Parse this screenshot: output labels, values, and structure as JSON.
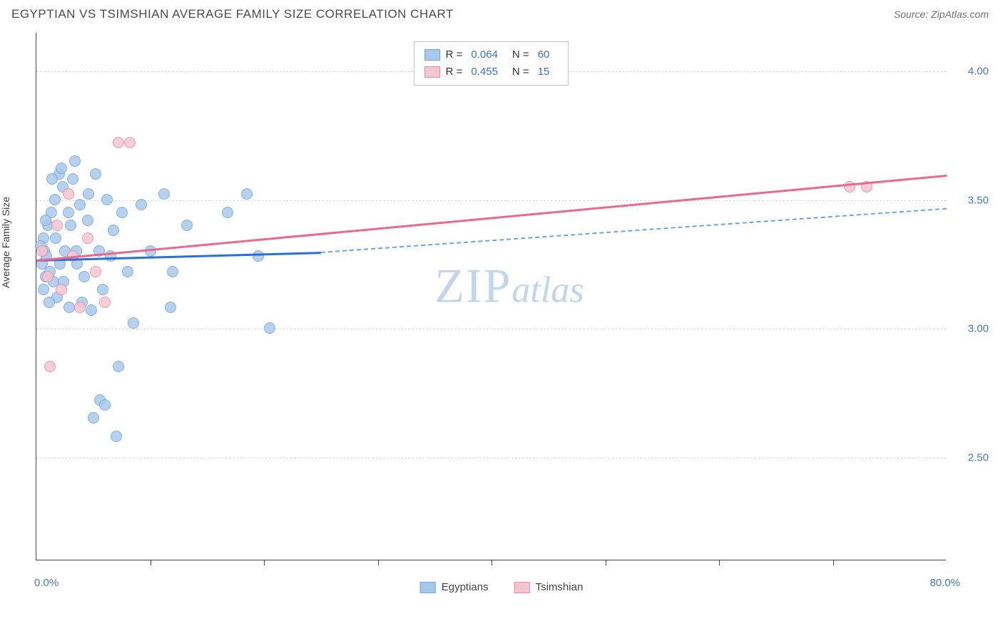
{
  "header": {
    "title": "EGYPTIAN VS TSIMSHIAN AVERAGE FAMILY SIZE CORRELATION CHART",
    "source_label": "Source: ",
    "source_value": "ZipAtlas.com"
  },
  "chart": {
    "type": "scatter",
    "y_axis_label": "Average Family Size",
    "x_min_label": "0.0%",
    "x_max_label": "80.0%",
    "xlim": [
      0,
      80
    ],
    "ylim": [
      2.1,
      4.15
    ],
    "y_ticks": [
      2.5,
      3.0,
      3.5,
      4.0
    ],
    "x_tick_positions": [
      10,
      20,
      30,
      40,
      50,
      60,
      70
    ],
    "grid_color": "#dcdcdc",
    "background_color": "#ffffff",
    "axis_color": "#444444",
    "tick_label_color": "#4178cc",
    "point_radius": 8,
    "series": [
      {
        "name": "Egyptians",
        "fill_color": "#a9c9ec",
        "stroke_color": "#6ea4e0",
        "trend_color": "#2a6fd6",
        "trend_dash_color": "#6ea4e0",
        "legend_r": "0.064",
        "legend_n": "60",
        "trend": {
          "x1": 0,
          "y1": 3.27,
          "x2_solid": 25,
          "y2_solid": 3.3,
          "x2_dash": 80,
          "y2_dash": 3.47
        },
        "points": [
          [
            0.5,
            3.25
          ],
          [
            0.7,
            3.3
          ],
          [
            0.8,
            3.2
          ],
          [
            0.6,
            3.35
          ],
          [
            0.9,
            3.28
          ],
          [
            1.0,
            3.4
          ],
          [
            1.2,
            3.22
          ],
          [
            1.3,
            3.45
          ],
          [
            1.5,
            3.18
          ],
          [
            1.6,
            3.5
          ],
          [
            1.8,
            3.12
          ],
          [
            2.0,
            3.6
          ],
          [
            2.1,
            3.25
          ],
          [
            2.3,
            3.55
          ],
          [
            2.5,
            3.3
          ],
          [
            2.8,
            3.45
          ],
          [
            3.0,
            3.4
          ],
          [
            3.2,
            3.58
          ],
          [
            3.6,
            3.25
          ],
          [
            3.8,
            3.48
          ],
          [
            4.2,
            3.2
          ],
          [
            4.5,
            3.42
          ],
          [
            4.8,
            3.07
          ],
          [
            5.2,
            3.6
          ],
          [
            5.5,
            3.3
          ],
          [
            5.8,
            3.15
          ],
          [
            6.2,
            3.5
          ],
          [
            6.8,
            3.38
          ],
          [
            7.2,
            2.85
          ],
          [
            7.5,
            3.45
          ],
          [
            8.0,
            3.22
          ],
          [
            8.5,
            3.02
          ],
          [
            9.2,
            3.48
          ],
          [
            10.0,
            3.3
          ],
          [
            11.2,
            3.52
          ],
          [
            12.0,
            3.22
          ],
          [
            13.2,
            3.4
          ],
          [
            16.8,
            3.45
          ],
          [
            18.5,
            3.52
          ],
          [
            19.5,
            3.28
          ],
          [
            20.5,
            3.0
          ],
          [
            5.0,
            2.65
          ],
          [
            5.6,
            2.72
          ],
          [
            6.0,
            2.7
          ],
          [
            7.0,
            2.58
          ],
          [
            3.4,
            3.65
          ],
          [
            2.2,
            3.62
          ],
          [
            1.4,
            3.58
          ],
          [
            1.1,
            3.1
          ],
          [
            0.4,
            3.32
          ],
          [
            0.6,
            3.15
          ],
          [
            0.8,
            3.42
          ],
          [
            1.7,
            3.35
          ],
          [
            2.4,
            3.18
          ],
          [
            2.9,
            3.08
          ],
          [
            3.5,
            3.3
          ],
          [
            4.0,
            3.1
          ],
          [
            4.6,
            3.52
          ],
          [
            6.5,
            3.28
          ],
          [
            11.8,
            3.08
          ]
        ]
      },
      {
        "name": "Tsimshian",
        "fill_color": "#f6c5d2",
        "stroke_color": "#e98aa4",
        "trend_color": "#e86a8f",
        "legend_r": "0.455",
        "legend_n": "15",
        "trend": {
          "x1": 0,
          "y1": 3.27,
          "x2_solid": 80,
          "y2_solid": 3.6
        },
        "points": [
          [
            0.5,
            3.3
          ],
          [
            1.0,
            3.2
          ],
          [
            1.8,
            3.4
          ],
          [
            2.2,
            3.15
          ],
          [
            2.8,
            3.52
          ],
          [
            3.2,
            3.28
          ],
          [
            3.8,
            3.08
          ],
          [
            4.5,
            3.35
          ],
          [
            5.2,
            3.22
          ],
          [
            6.0,
            3.1
          ],
          [
            1.2,
            2.85
          ],
          [
            7.2,
            3.72
          ],
          [
            8.2,
            3.72
          ],
          [
            71.5,
            3.55
          ],
          [
            73.0,
            3.55
          ]
        ]
      }
    ]
  },
  "legend_top": {
    "r_prefix": "R =",
    "n_prefix": "N ="
  },
  "legend_bottom": {
    "items": [
      "Egyptians",
      "Tsimshian"
    ]
  },
  "watermark": {
    "zip": "ZIP",
    "atlas": "atlas"
  }
}
